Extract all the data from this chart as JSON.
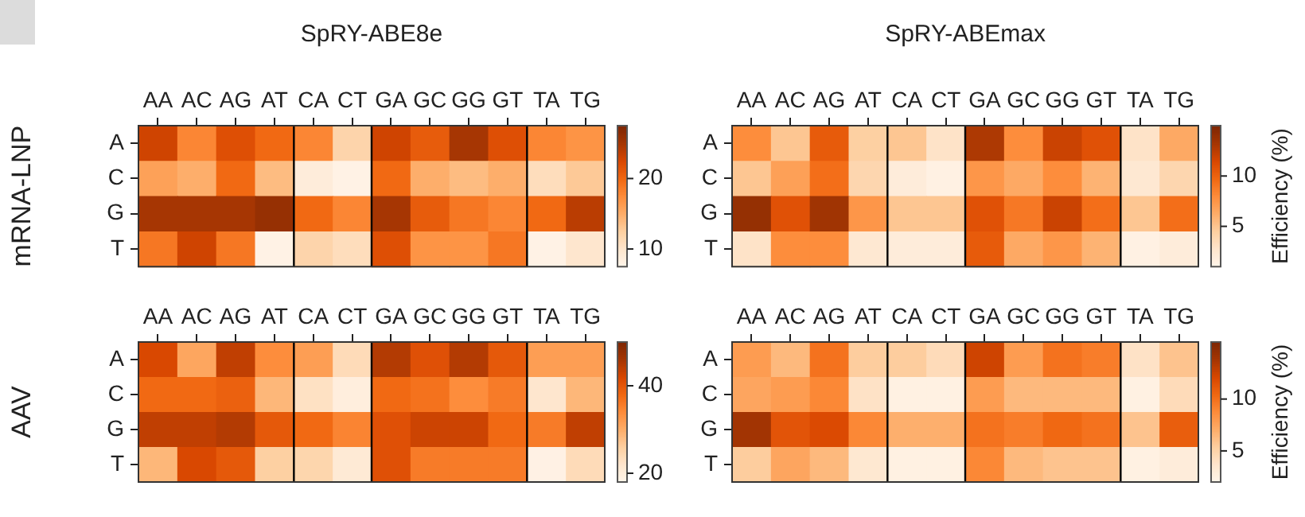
{
  "chart_data": [
    {
      "type": "heatmap",
      "title": "SpRY-ABE8e",
      "ylabel": "mRNA-LNP",
      "categories": [
        "AA",
        "AC",
        "AG",
        "AT",
        "CA",
        "CT",
        "GA",
        "GC",
        "GG",
        "GT",
        "TA",
        "TG"
      ],
      "y_categories": [
        "A",
        "C",
        "G",
        "T"
      ],
      "cells": [
        [
          23,
          18,
          22,
          20,
          18,
          12,
          23,
          21,
          25,
          22,
          18,
          17
        ],
        [
          16,
          15,
          20,
          14,
          9,
          8,
          20,
          15,
          14,
          15,
          11,
          13
        ],
        [
          25,
          25,
          25,
          26,
          20,
          18,
          25,
          21,
          19,
          18,
          20,
          24
        ],
        [
          19,
          23,
          19,
          8,
          12,
          11,
          22,
          17,
          17,
          19,
          8,
          10
        ]
      ],
      "clim": [
        7.5,
        27.5
      ],
      "cticks": [
        10,
        20
      ]
    },
    {
      "type": "heatmap",
      "title": "SpRY-ABEmax",
      "clabel": "Efficiency (%)",
      "categories": [
        "AA",
        "AC",
        "AG",
        "AT",
        "CA",
        "CT",
        "GA",
        "GC",
        "GG",
        "GT",
        "TA",
        "TG"
      ],
      "y_categories": [
        "A",
        "C",
        "G",
        "T"
      ],
      "cells": [
        [
          8,
          5,
          10.5,
          4.5,
          5,
          3,
          13,
          8,
          12,
          11,
          3,
          6.5
        ],
        [
          5,
          7,
          9.5,
          4,
          2,
          1.5,
          7.5,
          6.5,
          8,
          6,
          2.5,
          4
        ],
        [
          14,
          11,
          13.5,
          7.5,
          5,
          5,
          11,
          9,
          12,
          9.5,
          5,
          9.5
        ],
        [
          3,
          8,
          8,
          2.5,
          2,
          2,
          10.5,
          6.5,
          7.5,
          6,
          1.5,
          2
        ]
      ],
      "clim": [
        1,
        15
      ],
      "cticks": [
        5,
        10
      ]
    },
    {
      "type": "heatmap",
      "ylabel": "AAV",
      "categories": [
        "AA",
        "AC",
        "AG",
        "AT",
        "CA",
        "CT",
        "GA",
        "GC",
        "GG",
        "GT",
        "TA",
        "TG"
      ],
      "y_categories": [
        "A",
        "C",
        "G",
        "T"
      ],
      "cells": [
        [
          42,
          31,
          44,
          34,
          32,
          24,
          45,
          41,
          45,
          40,
          32,
          32
        ],
        [
          38,
          38,
          39,
          29,
          23,
          20,
          38,
          37,
          34,
          36,
          22,
          29
        ],
        [
          44,
          44,
          45,
          40,
          38,
          35,
          41,
          43,
          43,
          38,
          36,
          44
        ],
        [
          29,
          42,
          40,
          26,
          25,
          21,
          41,
          36,
          36,
          36,
          19,
          24
        ]
      ],
      "clim": [
        18,
        50
      ],
      "cticks": [
        20,
        40
      ]
    },
    {
      "type": "heatmap",
      "clabel": "Efficiency (%)",
      "categories": [
        "AA",
        "AC",
        "AG",
        "AT",
        "CA",
        "CT",
        "GA",
        "GC",
        "GG",
        "GT",
        "TA",
        "TG"
      ],
      "y_categories": [
        "A",
        "C",
        "G",
        "T"
      ],
      "cells": [
        [
          8,
          6.5,
          10,
          5.5,
          5.5,
          4.5,
          12.5,
          8,
          10,
          9.5,
          4,
          6
        ],
        [
          7.5,
          8,
          9,
          4,
          2.5,
          2.5,
          8,
          6.5,
          6.5,
          6.5,
          2.5,
          4.5
        ],
        [
          14,
          11.5,
          12,
          9,
          7,
          7,
          10,
          9.5,
          10.5,
          10,
          6,
          11
        ],
        [
          5.5,
          7.5,
          6.5,
          3.5,
          2.5,
          2.5,
          9,
          6.5,
          6,
          6,
          2.5,
          3
        ]
      ],
      "clim": [
        2,
        15.5
      ],
      "cticks": [
        5,
        10
      ]
    }
  ]
}
